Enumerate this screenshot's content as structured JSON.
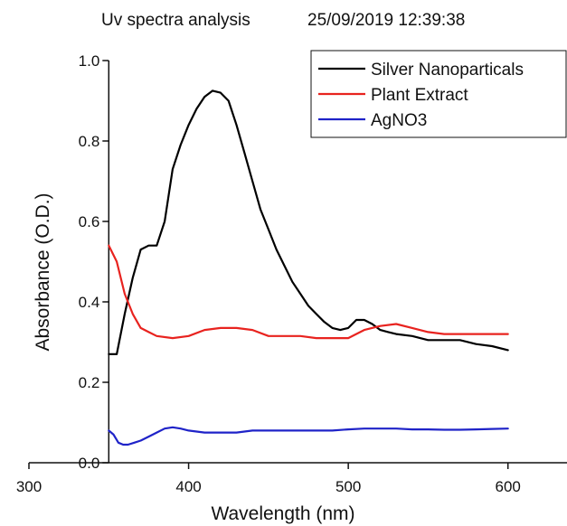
{
  "header": {
    "title": "Uv spectra analysis",
    "timestamp": "25/09/2019 12:39:38"
  },
  "chart_data": {
    "type": "line",
    "title": "",
    "xlabel": "Wavelength (nm)",
    "ylabel": "Absorbance (O.D.)",
    "xlim": [
      300,
      650
    ],
    "ylim": [
      0.0,
      1.0
    ],
    "x_ticks": [
      300,
      400,
      500,
      600
    ],
    "x_tick_labels": [
      "300",
      "400",
      "500",
      "600"
    ],
    "y_ticks": [
      0.0,
      0.2,
      0.4,
      0.6,
      0.8,
      1.0
    ],
    "y_tick_labels": [
      "0.0",
      "0.2",
      "0.4",
      "0.6",
      "0.8",
      "1.0"
    ],
    "grid": false,
    "legend_position": "top-right",
    "series": [
      {
        "name": "Silver Nanoparticals",
        "color": "#000000",
        "x": [
          350,
          355,
          360,
          365,
          370,
          375,
          380,
          385,
          390,
          395,
          400,
          405,
          410,
          415,
          420,
          425,
          430,
          435,
          440,
          445,
          450,
          455,
          460,
          465,
          470,
          475,
          480,
          485,
          490,
          495,
          500,
          505,
          510,
          515,
          520,
          525,
          530,
          540,
          550,
          560,
          570,
          580,
          590,
          600
        ],
        "y": [
          0.27,
          0.27,
          0.37,
          0.46,
          0.53,
          0.54,
          0.54,
          0.6,
          0.73,
          0.79,
          0.84,
          0.88,
          0.91,
          0.925,
          0.92,
          0.9,
          0.84,
          0.77,
          0.7,
          0.63,
          0.58,
          0.53,
          0.49,
          0.45,
          0.42,
          0.39,
          0.37,
          0.35,
          0.335,
          0.33,
          0.335,
          0.355,
          0.355,
          0.345,
          0.33,
          0.325,
          0.32,
          0.315,
          0.305,
          0.305,
          0.305,
          0.295,
          0.29,
          0.28
        ]
      },
      {
        "name": "Plant Extract",
        "color": "#e8231f",
        "x": [
          350,
          355,
          360,
          365,
          370,
          375,
          380,
          390,
          400,
          410,
          420,
          430,
          440,
          450,
          460,
          470,
          480,
          490,
          500,
          510,
          520,
          530,
          540,
          550,
          560,
          570,
          580,
          590,
          600
        ],
        "y": [
          0.54,
          0.5,
          0.42,
          0.37,
          0.335,
          0.325,
          0.315,
          0.31,
          0.315,
          0.33,
          0.335,
          0.335,
          0.33,
          0.315,
          0.315,
          0.315,
          0.31,
          0.31,
          0.31,
          0.33,
          0.34,
          0.345,
          0.335,
          0.325,
          0.32,
          0.32,
          0.32,
          0.32,
          0.32
        ]
      },
      {
        "name": "AgNO3",
        "color": "#1f23c8",
        "x": [
          350,
          353,
          356,
          359,
          362,
          366,
          370,
          375,
          380,
          385,
          390,
          395,
          400,
          410,
          420,
          430,
          440,
          450,
          460,
          470,
          480,
          490,
          500,
          510,
          520,
          530,
          540,
          550,
          560,
          570,
          580,
          590,
          600
        ],
        "y": [
          0.08,
          0.07,
          0.05,
          0.045,
          0.045,
          0.05,
          0.055,
          0.065,
          0.075,
          0.085,
          0.088,
          0.085,
          0.08,
          0.075,
          0.075,
          0.075,
          0.08,
          0.08,
          0.08,
          0.08,
          0.08,
          0.08,
          0.083,
          0.085,
          0.085,
          0.085,
          0.083,
          0.083,
          0.082,
          0.082,
          0.083,
          0.084,
          0.085
        ]
      }
    ]
  }
}
